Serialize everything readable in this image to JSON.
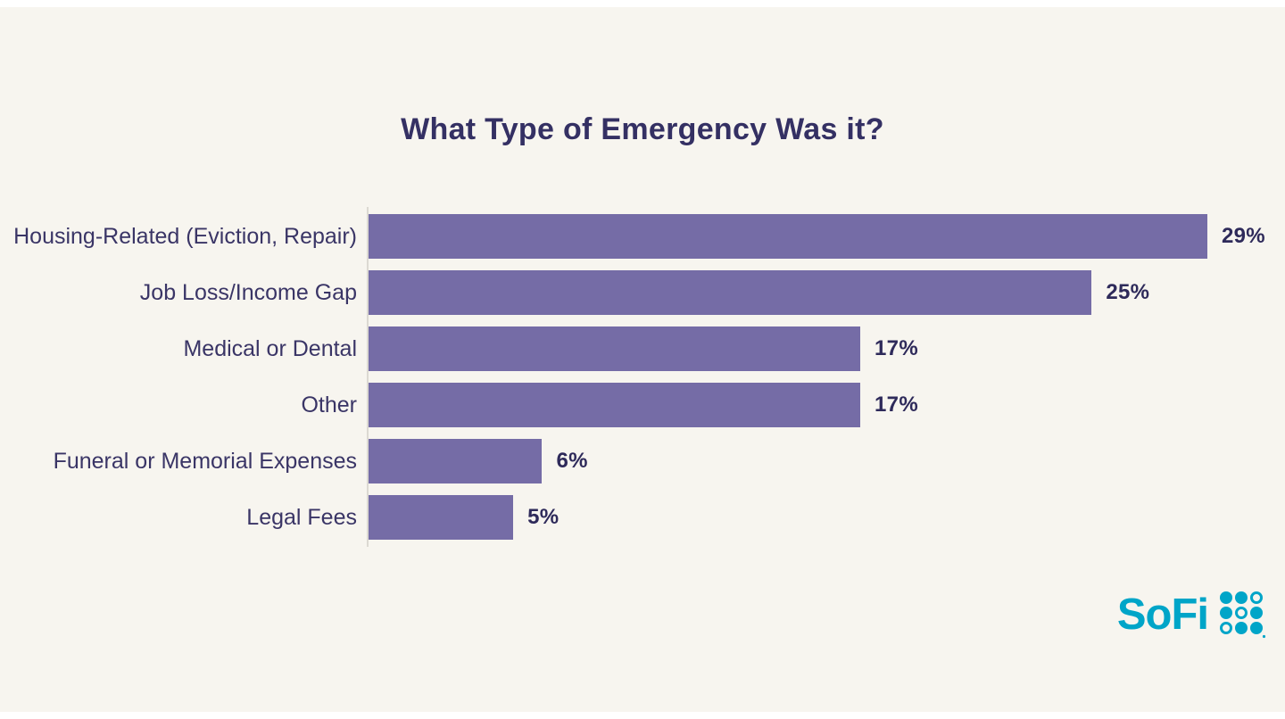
{
  "page": {
    "background_color": "#f7f5ef",
    "frame_strip_color": "#ffffff"
  },
  "chart_data": {
    "type": "bar",
    "orientation": "horizontal",
    "title": "What Type of Emergency Was it?",
    "categories": [
      "Housing-Related (Eviction, Repair)",
      "Job Loss/Income Gap",
      "Medical or Dental",
      "Other",
      "Funeral or Memorial Expenses",
      "Legal Fees"
    ],
    "values": [
      29,
      25,
      17,
      17,
      6,
      5
    ],
    "value_labels": [
      "29%",
      "25%",
      "17%",
      "17%",
      "6%",
      "5%"
    ],
    "xlabel": "",
    "ylabel": "",
    "xlim": [
      0,
      29
    ],
    "grid": false,
    "legend": false,
    "bar_color": "#756ca6",
    "axis_line_color": "#dcd9d2",
    "title_color": "#343063",
    "label_color": "#3a3566",
    "value_color": "#2e2a5a"
  },
  "branding": {
    "logo_text": "SoFi",
    "logo_color": "#00a5c8",
    "logo_mark": "sofi-dot-grid"
  }
}
